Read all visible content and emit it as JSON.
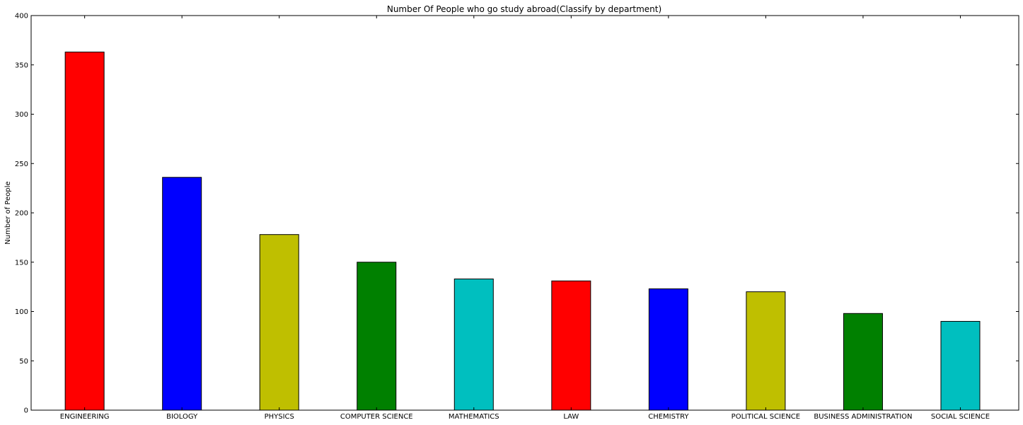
{
  "chart_data": {
    "type": "bar",
    "title": "Number Of People who go study abroad(Classify by department)",
    "xlabel": "",
    "ylabel": "Number of People",
    "categories": [
      "ENGINEERING",
      "BIOLOGY",
      "PHYSICS",
      "COMPUTER SCIENCE",
      "MATHEMATICS",
      "LAW",
      "CHEMISTRY",
      "POLITICAL SCIENCE",
      "BUSINESS ADMINISTRATION",
      "SOCIAL SCIENCE"
    ],
    "values": [
      363,
      236,
      178,
      150,
      133,
      131,
      123,
      120,
      98,
      90
    ],
    "colors": [
      "#ff0000",
      "#0000ff",
      "#bfbf00",
      "#008000",
      "#00bfbf",
      "#ff0000",
      "#0000ff",
      "#bfbf00",
      "#008000",
      "#00bfbf"
    ],
    "ylim": [
      0,
      400
    ],
    "yticks": [
      0,
      50,
      100,
      150,
      200,
      250,
      300,
      350,
      400
    ],
    "grid": false,
    "legend": false
  }
}
